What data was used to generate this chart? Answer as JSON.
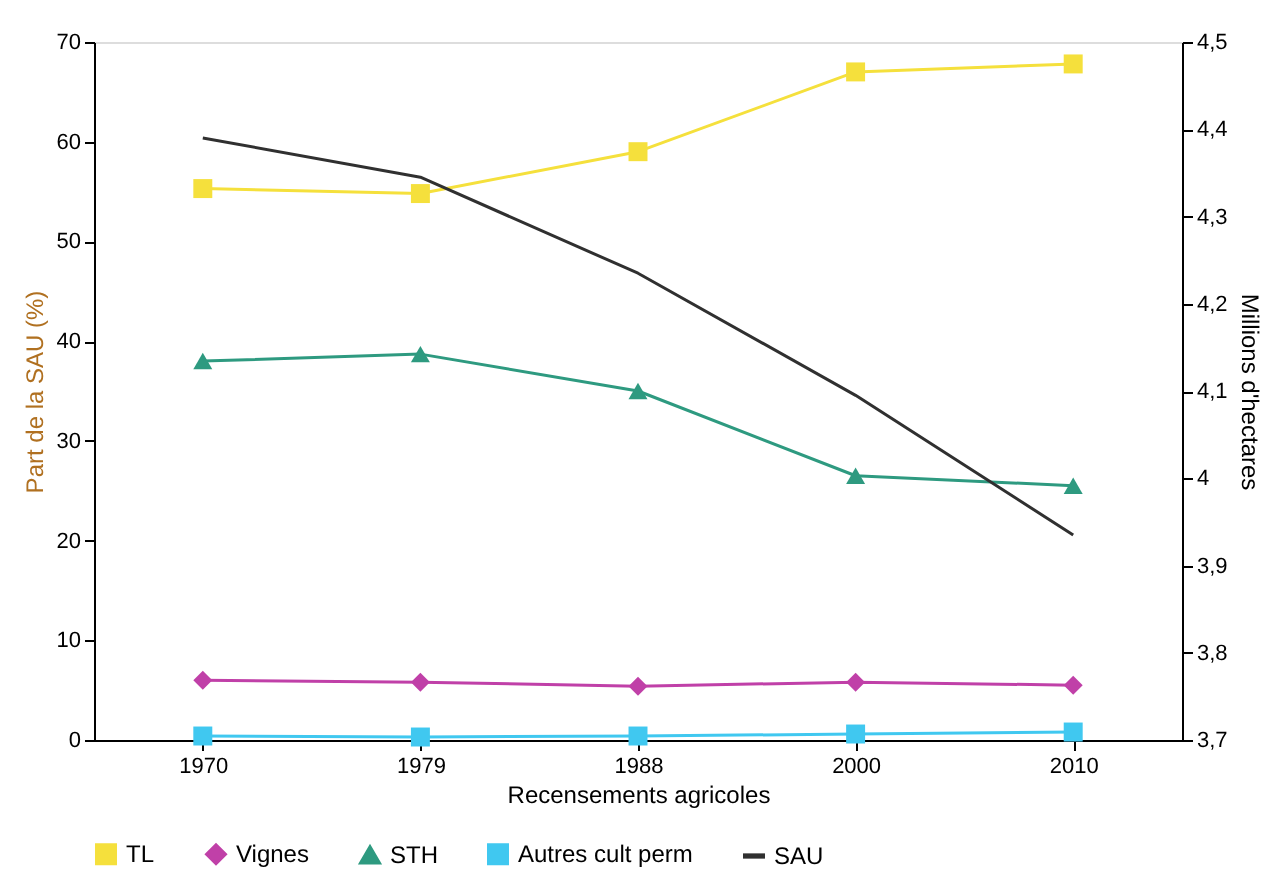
{
  "chart_data": {
    "type": "line",
    "xlabel": "Recensements agricoles",
    "ylabel": "Part de la SAU (%)",
    "y2label": "Millions d'hectares",
    "categories": [
      "1970",
      "1979",
      "1988",
      "2000",
      "2010"
    ],
    "series": [
      {
        "name": "TL",
        "color": "#f5e03c",
        "marker": "square",
        "values": [
          55.3,
          54.8,
          59,
          67,
          67.8
        ]
      },
      {
        "name": "Vignes",
        "color": "#c040a8",
        "marker": "diamond",
        "values": [
          6,
          5.8,
          5.4,
          5.8,
          5.5
        ]
      },
      {
        "name": "STH",
        "color": "#2e9a80",
        "marker": "triangle",
        "values": [
          38,
          38.7,
          35,
          26.5,
          25.5
        ]
      },
      {
        "name": "Autres cult perm",
        "color": "#40c8f0",
        "marker": "square",
        "values": [
          0.4,
          0.3,
          0.4,
          0.6,
          0.8
        ]
      },
      {
        "name": "SAU",
        "color": "#303030",
        "marker": "none",
        "axis": "y2",
        "values": [
          4.39,
          4.345,
          4.235,
          4.095,
          3.935
        ]
      }
    ],
    "ylim": [
      0,
      70
    ],
    "yticks": [
      0,
      10,
      20,
      30,
      40,
      50,
      60,
      70
    ],
    "y2lim": [
      3.7,
      4.5
    ],
    "y2ticks": [
      {
        "value": 3.7,
        "label": "3,7"
      },
      {
        "value": 3.8,
        "label": "3,8"
      },
      {
        "value": 3.9,
        "label": "3,9"
      },
      4,
      {
        "value": 4.1,
        "label": "4,1"
      },
      {
        "value": 4.2,
        "label": "4,2"
      },
      {
        "value": 4.3,
        "label": "4,3"
      },
      {
        "value": 4.4,
        "label": "4,4"
      },
      {
        "value": 4.5,
        "label": "4,5"
      }
    ],
    "grid": false,
    "legend": "bottom"
  }
}
